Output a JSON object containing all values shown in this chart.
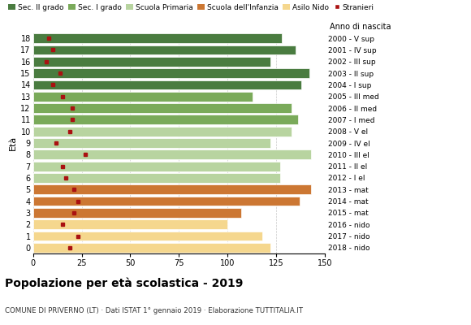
{
  "ages": [
    18,
    17,
    16,
    15,
    14,
    13,
    12,
    11,
    10,
    9,
    8,
    7,
    6,
    5,
    4,
    3,
    2,
    1,
    0
  ],
  "anno_nascita": [
    "2000 - V sup",
    "2001 - IV sup",
    "2002 - III sup",
    "2003 - II sup",
    "2004 - I sup",
    "2005 - III med",
    "2006 - II med",
    "2007 - I med",
    "2008 - V el",
    "2009 - IV el",
    "2010 - III el",
    "2011 - II el",
    "2012 - I el",
    "2013 - mat",
    "2014 - mat",
    "2015 - mat",
    "2016 - nido",
    "2017 - nido",
    "2018 - nido"
  ],
  "bar_values": [
    128,
    135,
    122,
    142,
    138,
    113,
    133,
    136,
    133,
    122,
    143,
    127,
    127,
    143,
    137,
    107,
    100,
    118,
    122
  ],
  "bar_colors": [
    "#4a7c40",
    "#4a7c40",
    "#4a7c40",
    "#4a7c40",
    "#4a7c40",
    "#7aaa5a",
    "#7aaa5a",
    "#7aaa5a",
    "#b8d4a0",
    "#b8d4a0",
    "#b8d4a0",
    "#b8d4a0",
    "#b8d4a0",
    "#cc7733",
    "#cc7733",
    "#cc7733",
    "#f5d78e",
    "#f5d78e",
    "#f5d78e"
  ],
  "stranieri_values": [
    8,
    10,
    7,
    14,
    10,
    15,
    20,
    20,
    19,
    12,
    27,
    15,
    17,
    21,
    23,
    21,
    15,
    23,
    19
  ],
  "legend_labels": [
    "Sec. II grado",
    "Sec. I grado",
    "Scuola Primaria",
    "Scuola dell'Infanzia",
    "Asilo Nido",
    "Stranieri"
  ],
  "legend_colors": [
    "#4a7c40",
    "#7aaa5a",
    "#b8d4a0",
    "#cc7733",
    "#f5d78e",
    "#aa1111"
  ],
  "title": "Popolazione per età scolastica - 2019",
  "subtitle": "COMUNE DI PRIVERNO (LT) · Dati ISTAT 1° gennaio 2019 · Elaborazione TUTTITALIA.IT",
  "ylabel_left": "Età",
  "ylabel_right": "Anno di nascita",
  "xlim": [
    0,
    150
  ],
  "xticks": [
    0,
    25,
    50,
    75,
    100,
    125,
    150
  ],
  "background_color": "#ffffff",
  "bar_height": 0.82,
  "grid_color": "#cccccc"
}
